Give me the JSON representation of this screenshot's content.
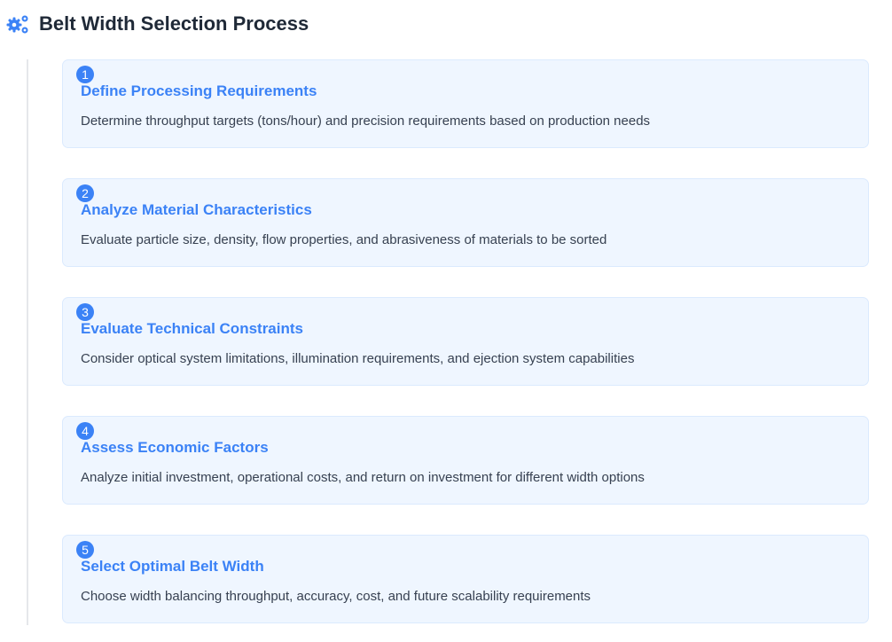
{
  "header": {
    "title": "Belt Width Selection Process",
    "icon": "cogs-icon",
    "accent": "#3b82f6"
  },
  "steps": [
    {
      "number": "1",
      "title": "Define Processing Requirements",
      "description": "Determine throughput targets (tons/hour) and precision requirements based on production needs"
    },
    {
      "number": "2",
      "title": "Analyze Material Characteristics",
      "description": "Evaluate particle size, density, flow properties, and abrasiveness of materials to be sorted"
    },
    {
      "number": "3",
      "title": "Evaluate Technical Constraints",
      "description": "Consider optical system limitations, illumination requirements, and ejection system capabilities"
    },
    {
      "number": "4",
      "title": "Assess Economic Factors",
      "description": "Analyze initial investment, operational costs, and return on investment for different width options"
    },
    {
      "number": "5",
      "title": "Select Optimal Belt Width",
      "description": "Choose width balancing throughput, accuracy, cost, and future scalability requirements"
    }
  ]
}
